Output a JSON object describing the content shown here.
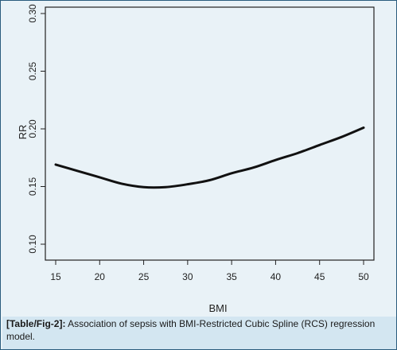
{
  "chart_data": {
    "type": "line",
    "title": "",
    "xlabel": "BMI",
    "ylabel": "RR",
    "xlim": [
      15,
      50
    ],
    "ylim": [
      0.1,
      0.3
    ],
    "xticks": [
      "15",
      "20",
      "25",
      "30",
      "35",
      "40",
      "45",
      "50"
    ],
    "yticks": [
      "0.10",
      "0.15",
      "0.20",
      "0.25",
      "0.30"
    ],
    "grid": false,
    "series": [
      {
        "x": [
          15,
          17.5,
          20,
          22.5,
          25,
          27.5,
          30,
          32.5,
          35,
          37.5,
          40,
          42.5,
          45,
          47.5,
          50
        ],
        "values": [
          0.169,
          0.1635,
          0.158,
          0.1525,
          0.1495,
          0.1495,
          0.152,
          0.1555,
          0.1615,
          0.1665,
          0.173,
          0.179,
          0.186,
          0.193,
          0.201
        ],
        "color": "#111111"
      }
    ]
  },
  "caption": {
    "tag": "[Table/Fig-2]:",
    "text": " Association of sepsis with BMI-Restricted Cubic Spline (RCS) regression model."
  },
  "colors": {
    "background": "#e9f2f7",
    "caption_background": "#d3e6f1",
    "border": "#2a5c7e",
    "curve": "#111111"
  }
}
